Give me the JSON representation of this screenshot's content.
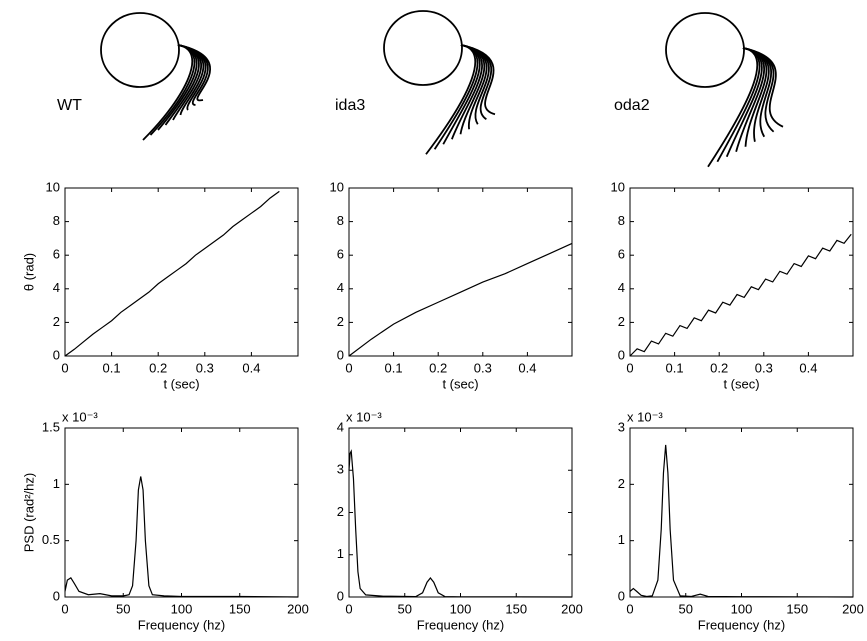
{
  "waveform_labels": [
    "WT",
    "ida3",
    "oda2"
  ],
  "chart_data": [
    {
      "type": "line",
      "color": "#000000",
      "xlabel": "t (sec)",
      "ylabel": "θ (rad)",
      "x": [
        0,
        0.02,
        0.04,
        0.06,
        0.08,
        0.1,
        0.12,
        0.14,
        0.16,
        0.18,
        0.2,
        0.22,
        0.24,
        0.26,
        0.28,
        0.3,
        0.32,
        0.34,
        0.36,
        0.38,
        0.4,
        0.42,
        0.44,
        0.46
      ],
      "values": [
        0,
        0.4,
        0.85,
        1.3,
        1.7,
        2.1,
        2.6,
        3.0,
        3.4,
        3.8,
        4.3,
        4.7,
        5.1,
        5.5,
        6.0,
        6.4,
        6.8,
        7.2,
        7.7,
        8.1,
        8.5,
        8.9,
        9.4,
        9.8
      ],
      "xlim": [
        0,
        0.5
      ],
      "ylim": [
        0,
        10
      ],
      "xticks": [
        0,
        0.1,
        0.2,
        0.3,
        0.4
      ],
      "yticks": [
        0,
        2,
        4,
        6,
        8,
        10
      ]
    },
    {
      "type": "line",
      "color": "#000000",
      "xlabel": "t (sec)",
      "x": [
        0,
        0.05,
        0.1,
        0.15,
        0.2,
        0.25,
        0.3,
        0.35,
        0.4,
        0.45,
        0.5
      ],
      "values": [
        0,
        1.0,
        1.9,
        2.6,
        3.2,
        3.8,
        4.4,
        4.9,
        5.5,
        6.1,
        6.7
      ],
      "xlim": [
        0,
        0.5
      ],
      "ylim": [
        0,
        10
      ],
      "xticks": [
        0,
        0.1,
        0.2,
        0.3,
        0.4
      ],
      "yticks": [
        0,
        2,
        4,
        6,
        8,
        10
      ]
    },
    {
      "type": "line",
      "color": "#000000",
      "xlabel": "t (sec)",
      "x": [
        0,
        0.016,
        0.032,
        0.048,
        0.064,
        0.08,
        0.096,
        0.112,
        0.128,
        0.144,
        0.16,
        0.176,
        0.192,
        0.208,
        0.224,
        0.24,
        0.256,
        0.272,
        0.288,
        0.304,
        0.32,
        0.336,
        0.352,
        0.368,
        0.384,
        0.4,
        0.416,
        0.432,
        0.448,
        0.464,
        0.48,
        0.496
      ],
      "values": [
        0,
        0.43,
        0.26,
        0.89,
        0.72,
        1.35,
        1.18,
        1.81,
        1.64,
        2.27,
        2.1,
        2.73,
        2.56,
        3.2,
        3.03,
        3.66,
        3.49,
        4.12,
        3.95,
        4.58,
        4.41,
        5.04,
        4.87,
        5.5,
        5.33,
        5.96,
        5.79,
        6.42,
        6.25,
        6.88,
        6.71,
        7.25
      ],
      "xlim": [
        0,
        0.5
      ],
      "ylim": [
        0,
        10
      ],
      "xticks": [
        0,
        0.1,
        0.2,
        0.3,
        0.4
      ],
      "yticks": [
        0,
        2,
        4,
        6,
        8,
        10
      ]
    },
    {
      "type": "line",
      "color": "#000000",
      "xlabel": "Frequency (hz)",
      "ylabel": "PSD (rad²/hz)",
      "multiplier": "x 10⁻³",
      "x": [
        0,
        2,
        5,
        8,
        12,
        20,
        30,
        40,
        50,
        55,
        58,
        61,
        63,
        65,
        67,
        69,
        72,
        75,
        85,
        100,
        150,
        200
      ],
      "values": [
        0.05,
        0.15,
        0.17,
        0.12,
        0.05,
        0.02,
        0.03,
        0.01,
        0.01,
        0.02,
        0.1,
        0.5,
        0.95,
        1.07,
        0.95,
        0.5,
        0.1,
        0.02,
        0.01,
        0.005,
        0.005,
        0
      ],
      "xlim": [
        0,
        200
      ],
      "ylim": [
        0,
        1.5
      ],
      "xticks": [
        0,
        50,
        100,
        150,
        200
      ],
      "yticks": [
        0,
        0.5,
        1,
        1.5
      ]
    },
    {
      "type": "line",
      "color": "#000000",
      "xlabel": "Frequency (hz)",
      "multiplier": "x 10⁻³",
      "x": [
        0,
        1,
        2,
        4,
        6,
        8,
        10,
        15,
        30,
        60,
        66,
        70,
        73,
        76,
        80,
        86,
        100,
        150,
        200
      ],
      "values": [
        3.0,
        3.4,
        3.45,
        2.8,
        1.6,
        0.6,
        0.2,
        0.05,
        0.02,
        0.01,
        0.1,
        0.35,
        0.45,
        0.35,
        0.1,
        0.01,
        0.005,
        0.003,
        0
      ],
      "xlim": [
        0,
        200
      ],
      "ylim": [
        0,
        4
      ],
      "xticks": [
        0,
        50,
        100,
        150,
        200
      ],
      "yticks": [
        0,
        1,
        2,
        3,
        4
      ]
    },
    {
      "type": "line",
      "color": "#000000",
      "xlabel": "Frequency (hz)",
      "multiplier": "x 10⁻³",
      "x": [
        0,
        3,
        6,
        10,
        15,
        20,
        25,
        28,
        30,
        32,
        34,
        36,
        39,
        45,
        55,
        63,
        70,
        100,
        150,
        200
      ],
      "values": [
        0.1,
        0.15,
        0.1,
        0.03,
        0.01,
        0.02,
        0.3,
        1.2,
        2.2,
        2.7,
        2.2,
        1.2,
        0.3,
        0.02,
        0.01,
        0.05,
        0.01,
        0.005,
        0.003,
        0
      ],
      "xlim": [
        0,
        200
      ],
      "ylim": [
        0,
        3
      ],
      "xticks": [
        0,
        50,
        100,
        150,
        200
      ],
      "yticks": [
        0,
        1,
        2,
        3
      ]
    }
  ]
}
